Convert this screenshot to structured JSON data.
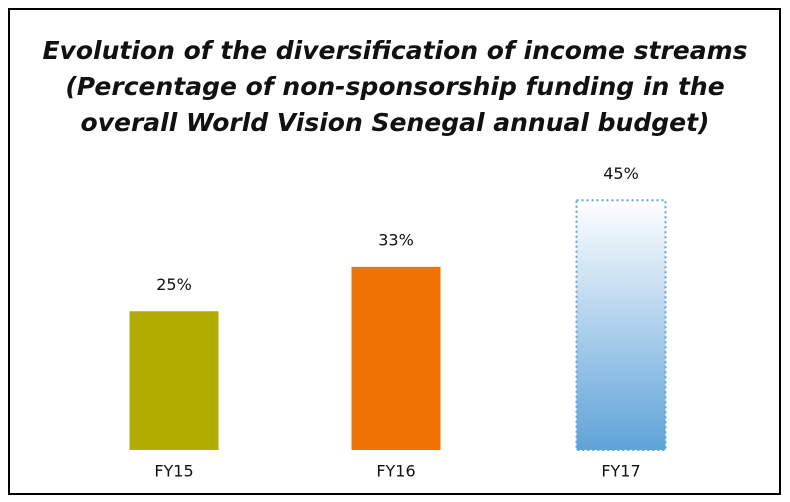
{
  "chart_data": {
    "type": "bar",
    "title": [
      "Evolution of the diversification of income streams",
      "(Percentage of non-sponsorship funding in the",
      "overall World Vision Senegal annual budget)"
    ],
    "categories": [
      "FY15",
      "FY16",
      "FY17"
    ],
    "values": [
      25,
      33,
      45
    ],
    "value_labels": [
      "25%",
      "33%",
      "45%"
    ],
    "colors": [
      "#b0ad00",
      "#ef7203",
      "#5fa3d8"
    ]
  }
}
